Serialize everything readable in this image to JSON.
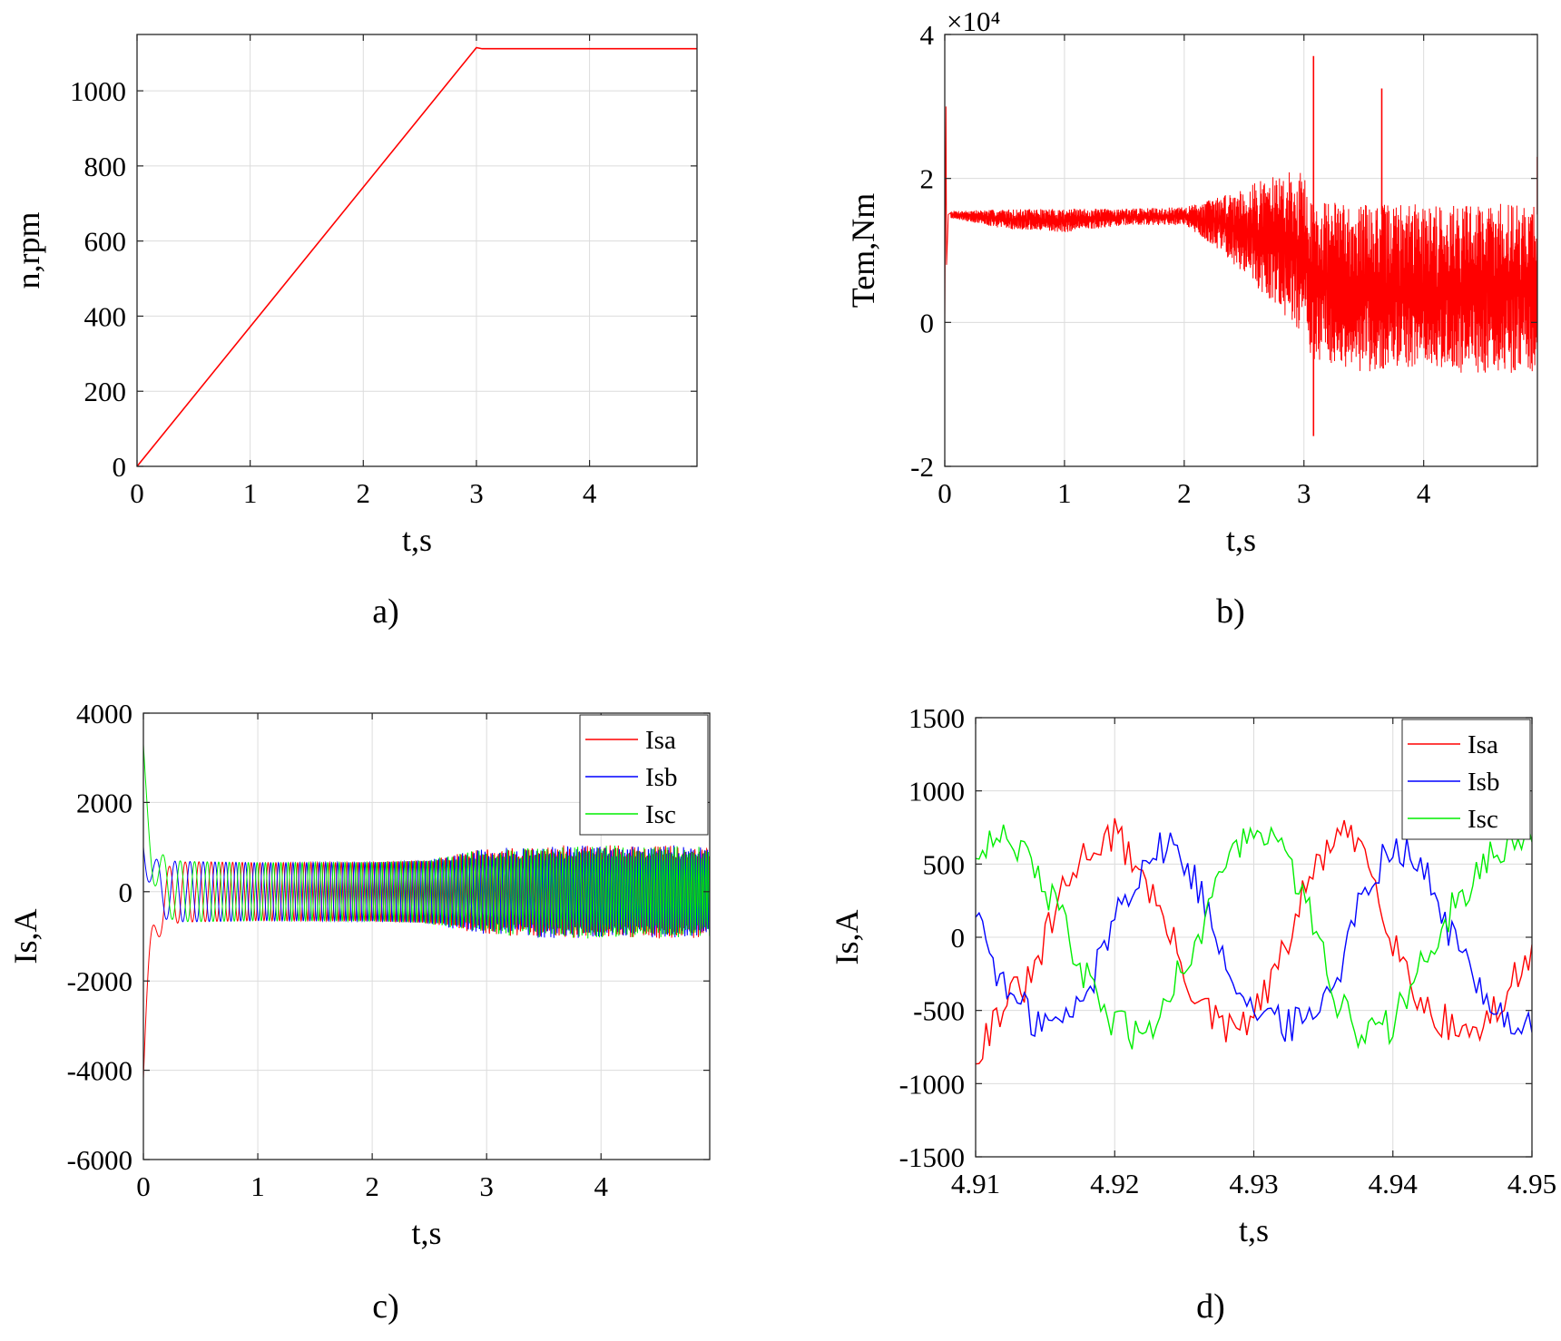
{
  "chart_data": [
    {
      "panel": "a)",
      "type": "line",
      "xlabel": "t,s",
      "ylabel": "n,rpm",
      "xlim": [
        0,
        4.95
      ],
      "ylim": [
        0,
        1150
      ],
      "xticks": [
        0,
        1,
        2,
        3,
        4
      ],
      "yticks": [
        0,
        200,
        400,
        600,
        800,
        1000
      ],
      "grid": true,
      "legend": null,
      "series": [
        {
          "color": "#ff0000",
          "x": [
            0,
            3.0,
            3.05,
            4.95
          ],
          "y": [
            0,
            1115,
            1112,
            1112
          ]
        }
      ]
    },
    {
      "panel": "b)",
      "type": "line",
      "xlabel": "t,s",
      "ylabel": "Tem,Nm",
      "ylabel_exponent": "×10⁴",
      "xlim": [
        0,
        4.95
      ],
      "ylim": [
        -20000,
        40000
      ],
      "xticks": [
        0,
        1,
        2,
        3,
        4
      ],
      "yticks": [
        -20000,
        0,
        20000,
        40000
      ],
      "ytick_labels": [
        "-2",
        "0",
        "2",
        "4"
      ],
      "grid": true,
      "legend": null,
      "series": [
        {
          "color": "#ff0000",
          "initial_spike_t": 0.01,
          "initial_spike_value": 30000,
          "envelope_t": [
            0.05,
            0.5,
            1.0,
            1.5,
            2.0,
            2.3,
            2.6,
            2.9,
            3.0,
            3.05,
            3.5,
            4.0,
            4.5,
            4.95
          ],
          "envelope_max": [
            15500,
            15700,
            15800,
            15800,
            16000,
            17500,
            19500,
            21000,
            21000,
            17000,
            16500,
            16500,
            16500,
            16500
          ],
          "envelope_min": [
            14500,
            13000,
            12500,
            13500,
            13500,
            10000,
            5000,
            0,
            -2000,
            -5000,
            -7000,
            -7000,
            -7000,
            -7000
          ],
          "spikes": [
            [
              3.08,
              37000
            ],
            [
              3.08,
              -15800
            ],
            [
              3.65,
              32500
            ],
            [
              4.95,
              23000
            ]
          ]
        }
      ]
    },
    {
      "panel": "c)",
      "type": "line",
      "xlabel": "t,s",
      "ylabel": "Is,A",
      "xlim": [
        0,
        4.95
      ],
      "ylim": [
        -6000,
        4000
      ],
      "xticks": [
        0,
        1,
        2,
        3,
        4
      ],
      "yticks": [
        -6000,
        -4000,
        -2000,
        0,
        2000,
        4000
      ],
      "grid": true,
      "legend": "top-right",
      "series": [
        {
          "name": "Isa",
          "color": "#ff0000",
          "start_value": -4200
        },
        {
          "name": "Isb",
          "color": "#0000ff",
          "start_value": 1000
        },
        {
          "name": "Isc",
          "color": "#00ee00",
          "start_value": 3300
        }
      ],
      "envelope_t": [
        0.3,
        1.0,
        2.0,
        2.5,
        2.9,
        3.5,
        4.0,
        4.95
      ],
      "envelope_amplitude": [
        680,
        650,
        660,
        700,
        800,
        900,
        900,
        900
      ]
    },
    {
      "panel": "d)",
      "type": "line",
      "xlabel": "t,s",
      "ylabel": "Is,A",
      "xlim": [
        4.91,
        4.95
      ],
      "ylim": [
        -1500,
        1500
      ],
      "xticks": [
        4.91,
        4.92,
        4.93,
        4.94,
        4.95
      ],
      "yticks": [
        -1500,
        -1000,
        -500,
        0,
        500,
        1000,
        1500
      ],
      "grid": true,
      "legend": "top-right",
      "series": [
        {
          "name": "Isa",
          "color": "#ff0000",
          "x": [
            4.91,
            4.912,
            4.914,
            4.916,
            4.918,
            4.92,
            4.922,
            4.924,
            4.926,
            4.928,
            4.93,
            4.932,
            4.934,
            4.936,
            4.938,
            4.94,
            4.942,
            4.944,
            4.946,
            4.948,
            4.95
          ],
          "y": [
            -800,
            -450,
            -300,
            250,
            600,
            700,
            450,
            0,
            -450,
            -650,
            -550,
            -150,
            400,
            700,
            600,
            0,
            -450,
            -600,
            -650,
            -450,
            -50
          ]
        },
        {
          "name": "Isb",
          "color": "#0000ff",
          "x": [
            4.91,
            4.912,
            4.914,
            4.916,
            4.918,
            4.92,
            4.922,
            4.924,
            4.926,
            4.928,
            4.93,
            4.932,
            4.934,
            4.936,
            4.938,
            4.94,
            4.942,
            4.944,
            4.946,
            4.948,
            4.95
          ],
          "y": [
            200,
            -350,
            -550,
            -600,
            -400,
            150,
            500,
            650,
            350,
            -150,
            -500,
            -600,
            -550,
            -250,
            350,
            650,
            500,
            50,
            -300,
            -550,
            -650
          ]
        },
        {
          "name": "Isc",
          "color": "#00ee00",
          "x": [
            4.91,
            4.912,
            4.914,
            4.916,
            4.918,
            4.92,
            4.922,
            4.924,
            4.926,
            4.928,
            4.93,
            4.932,
            4.934,
            4.936,
            4.938,
            4.94,
            4.942,
            4.944,
            4.946,
            4.948,
            4.95
          ],
          "y": [
            600,
            750,
            500,
            150,
            -300,
            -600,
            -700,
            -350,
            0,
            550,
            700,
            650,
            150,
            -450,
            -700,
            -600,
            -150,
            150,
            450,
            600,
            650
          ]
        }
      ]
    }
  ]
}
